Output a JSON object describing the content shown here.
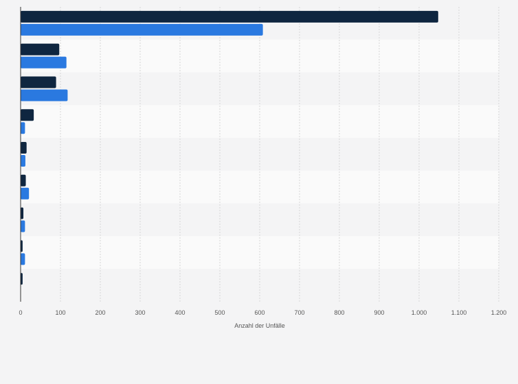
{
  "chart_data": {
    "type": "bar",
    "orientation": "horizontal",
    "xlabel": "Anzahl der Unfälle",
    "ylabel": "",
    "xlim": [
      0,
      1200
    ],
    "x_ticks": [
      0,
      100,
      200,
      300,
      400,
      500,
      600,
      700,
      800,
      900,
      1000,
      1100,
      1200
    ],
    "x_tick_labels": [
      "0",
      "100",
      "200",
      "300",
      "400",
      "500",
      "600",
      "700",
      "800",
      "900",
      "1.000",
      "1.100",
      "1.200"
    ],
    "grid": "vertical",
    "categories": [
      "",
      "",
      "",
      "",
      "",
      "",
      "",
      "",
      ""
    ],
    "series": [
      {
        "color": "#0f2640",
        "values": [
          1048,
          97,
          89,
          33,
          15,
          13,
          7,
          5,
          5
        ]
      },
      {
        "color": "#2a79e0",
        "values": [
          608,
          115,
          118,
          11,
          12,
          21,
          11,
          11,
          0
        ]
      }
    ]
  }
}
